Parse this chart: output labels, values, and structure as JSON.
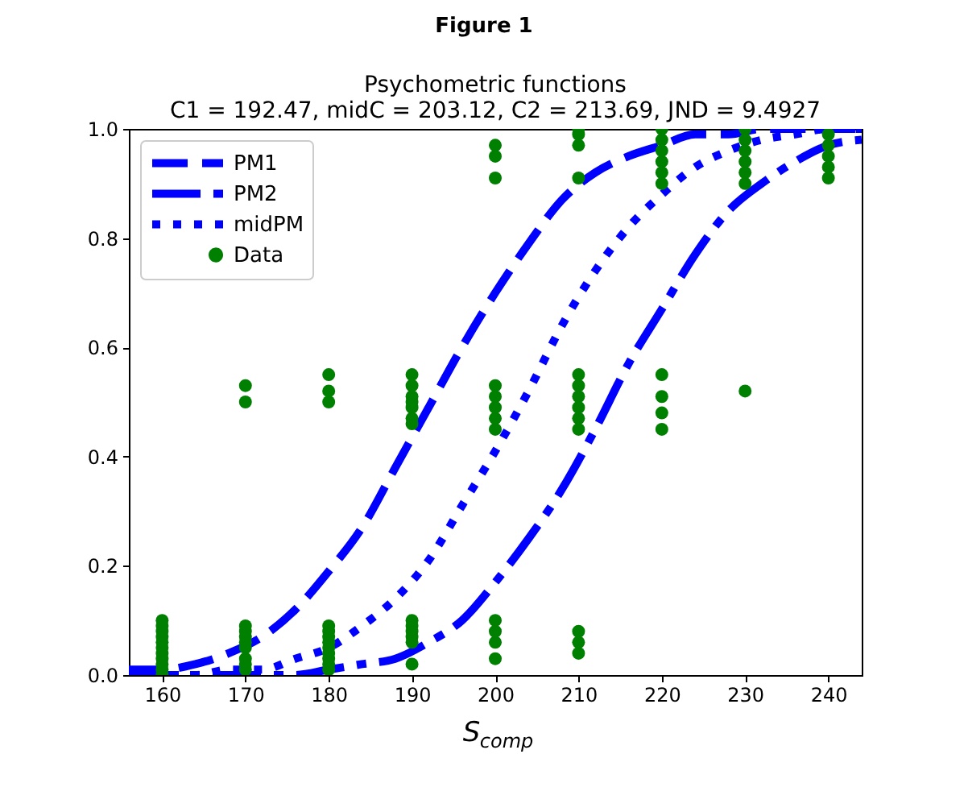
{
  "chart_data": {
    "type": "line",
    "title": "Psychometric functions",
    "subtitle": "C1 = 192.47, midC = 203.12, C2 = 213.69,  JND = 9.4927",
    "xlabel": "S$_{comp}$",
    "annotations": [
      "Figure 1"
    ],
    "x": [
      156,
      160,
      164,
      168,
      172,
      176,
      180,
      184,
      188,
      192,
      196,
      200,
      204,
      208,
      212,
      216,
      220,
      224,
      228,
      232,
      236,
      240,
      244
    ],
    "series": [
      {
        "name": "PM1",
        "color": "#0000ff",
        "line_style": "dashed",
        "values": [
          0.01,
          0.01,
          0.02,
          0.04,
          0.07,
          0.12,
          0.19,
          0.27,
          0.38,
          0.49,
          0.6,
          0.7,
          0.79,
          0.87,
          0.92,
          0.95,
          0.97,
          0.99,
          0.99,
          1.0,
          1.0,
          1.0,
          1.0
        ]
      },
      {
        "name": "PM2",
        "color": "#0000ff",
        "line_style": "dashdot",
        "values": [
          0.0,
          0.0,
          0.0,
          0.0,
          0.0,
          0.0,
          0.01,
          0.02,
          0.03,
          0.06,
          0.1,
          0.17,
          0.25,
          0.34,
          0.45,
          0.57,
          0.67,
          0.77,
          0.85,
          0.9,
          0.94,
          0.97,
          0.98
        ]
      },
      {
        "name": "midPM",
        "color": "#0000ff",
        "line_style": "dotted",
        "values": [
          0.0,
          0.0,
          0.0,
          0.01,
          0.01,
          0.03,
          0.05,
          0.09,
          0.14,
          0.21,
          0.31,
          0.41,
          0.52,
          0.64,
          0.74,
          0.82,
          0.88,
          0.93,
          0.96,
          0.98,
          0.99,
          1.0,
          1.0
        ]
      },
      {
        "name": "Data",
        "type": "scatter",
        "color": "#008000",
        "marker": "circle",
        "x": [
          160,
          160,
          160,
          160,
          160,
          160,
          160,
          160,
          160,
          160,
          160,
          170,
          170,
          170,
          170,
          170,
          170,
          170,
          170,
          170,
          170,
          180,
          180,
          180,
          180,
          180,
          180,
          180,
          180,
          180,
          180,
          180,
          180,
          190,
          190,
          190,
          190,
          190,
          190,
          190,
          190,
          190,
          190,
          190,
          190,
          190,
          200,
          200,
          200,
          200,
          200,
          200,
          200,
          200,
          200,
          200,
          200,
          200,
          210,
          210,
          210,
          210,
          210,
          210,
          210,
          210,
          210,
          210,
          210,
          210,
          210,
          220,
          220,
          220,
          220,
          220,
          220,
          220,
          220,
          220,
          220,
          230,
          230,
          230,
          230,
          230,
          230,
          230,
          240,
          240,
          240,
          240,
          240
        ],
        "values": [
          0.0,
          0.01,
          0.02,
          0.03,
          0.04,
          0.05,
          0.06,
          0.07,
          0.08,
          0.09,
          0.1,
          0.01,
          0.02,
          0.03,
          0.05,
          0.06,
          0.07,
          0.08,
          0.09,
          0.5,
          0.53,
          0.01,
          0.02,
          0.03,
          0.04,
          0.05,
          0.06,
          0.07,
          0.08,
          0.09,
          0.5,
          0.52,
          0.55,
          0.02,
          0.06,
          0.07,
          0.08,
          0.09,
          0.1,
          0.46,
          0.47,
          0.49,
          0.5,
          0.51,
          0.53,
          0.55,
          0.03,
          0.06,
          0.08,
          0.1,
          0.45,
          0.47,
          0.49,
          0.51,
          0.53,
          0.91,
          0.95,
          0.97,
          0.04,
          0.06,
          0.08,
          0.45,
          0.47,
          0.49,
          0.51,
          0.53,
          0.55,
          0.91,
          0.97,
          0.99,
          1.0,
          0.45,
          0.48,
          0.51,
          0.55,
          0.9,
          0.92,
          0.94,
          0.96,
          0.98,
          1.0,
          0.52,
          0.9,
          0.92,
          0.94,
          0.96,
          0.98,
          1.0,
          0.91,
          0.93,
          0.95,
          0.97,
          0.99
        ]
      }
    ],
    "xlim": [
      156,
      244
    ],
    "xticks": [
      160,
      170,
      180,
      190,
      200,
      210,
      220,
      230,
      240
    ],
    "ylim": [
      0,
      1
    ],
    "yticks": [
      {
        "value": 0,
        "label": "0.0"
      },
      0.2,
      0.4,
      0.6,
      0.8,
      {
        "value": 1,
        "label": "1.0"
      }
    ],
    "grid": false,
    "legend": "top left"
  }
}
